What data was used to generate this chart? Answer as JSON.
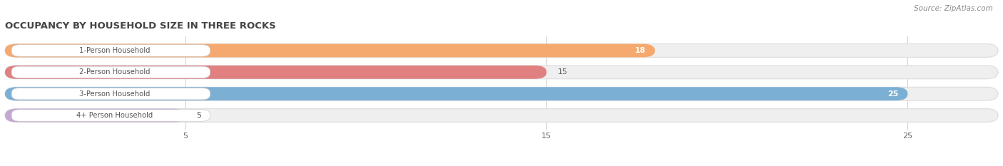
{
  "title": "OCCUPANCY BY HOUSEHOLD SIZE IN THREE ROCKS",
  "source": "Source: ZipAtlas.com",
  "categories": [
    "1-Person Household",
    "2-Person Household",
    "3-Person Household",
    "4+ Person Household"
  ],
  "values": [
    18,
    15,
    25,
    5
  ],
  "bar_colors": [
    "#F5A96E",
    "#E08080",
    "#7BAFD4",
    "#C4A8D4"
  ],
  "bar_bg_color": "#EFEFEF",
  "label_bg_color": "#FFFFFF",
  "xlim": [
    0,
    27.5
  ],
  "xticks": [
    5,
    15,
    25
  ],
  "label_inside": [
    true,
    false,
    true,
    false
  ],
  "figsize": [
    14.06,
    2.33
  ],
  "dpi": 100,
  "title_color": "#444444",
  "label_text_color": "#555555",
  "value_color_inside": "#FFFFFF",
  "value_color_outside": "#555555"
}
